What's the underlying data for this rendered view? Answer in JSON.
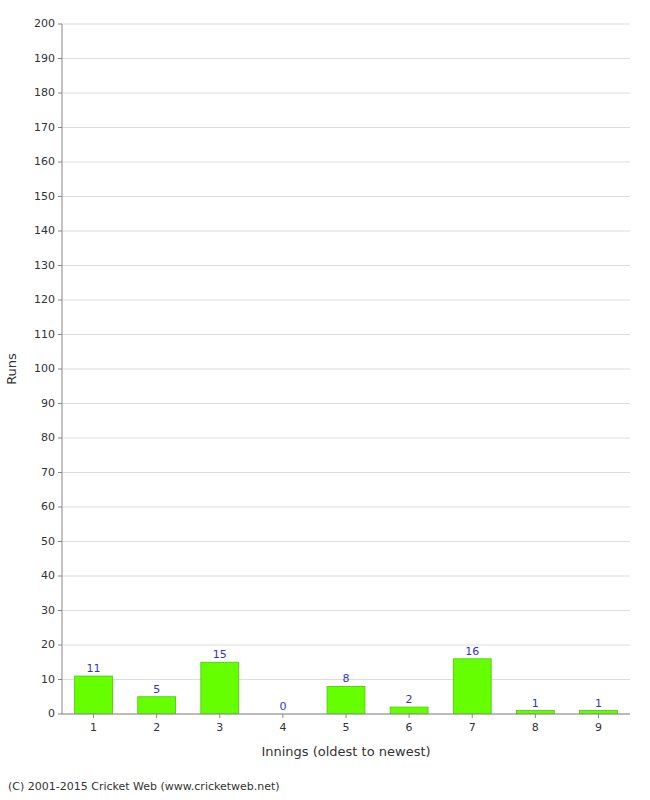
{
  "chart_data": {
    "type": "bar",
    "categories": [
      "1",
      "2",
      "3",
      "4",
      "5",
      "6",
      "7",
      "8",
      "9"
    ],
    "values": [
      11,
      5,
      15,
      0,
      8,
      2,
      16,
      1,
      1
    ],
    "color": "#66ff00",
    "xlabel": "Innings (oldest to newest)",
    "ylabel": "Runs",
    "ylim": [
      0,
      200
    ],
    "yticks": [
      0,
      10,
      20,
      30,
      40,
      50,
      60,
      70,
      80,
      90,
      100,
      110,
      120,
      130,
      140,
      150,
      160,
      170,
      180,
      190,
      200
    ],
    "grid": true,
    "data_labels": true,
    "annotations": [
      "(C) 2001-2015 Cricket Web (www.cricketweb.net)"
    ]
  }
}
